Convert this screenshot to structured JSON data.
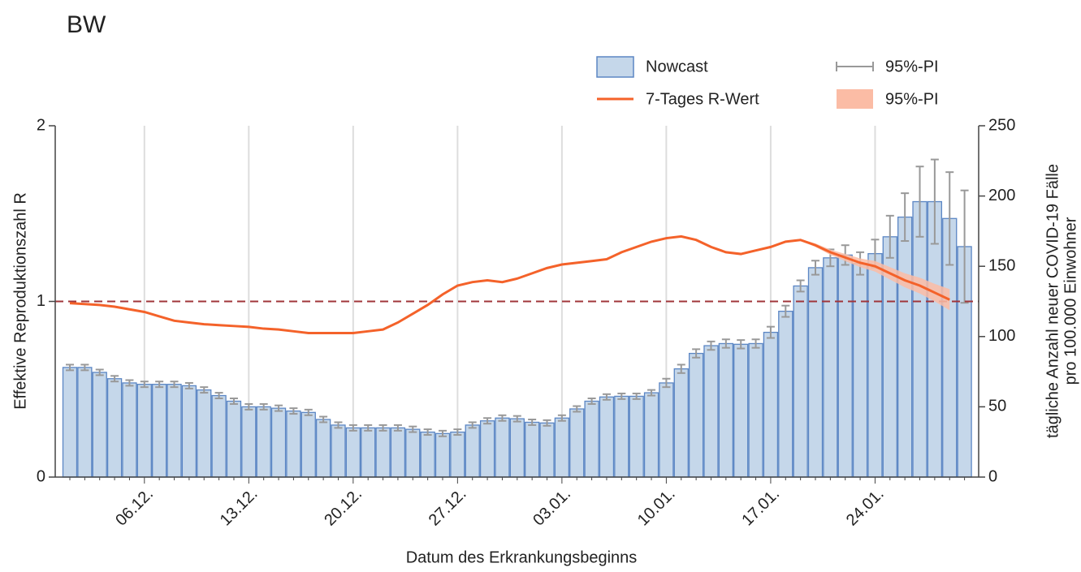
{
  "chart_data": {
    "type": "bar_line_dual",
    "title": "BW",
    "ylabel": "Effektive Reproduktionszahl R",
    "y2label": [
      "tägliche Anzahl neuer COVID-19 Fälle",
      "pro 100.000 Einwohner"
    ],
    "xlabel": "Datum des Erkrankungsbeginns",
    "categories": [
      null,
      null,
      null,
      null,
      null,
      "06.12.",
      null,
      null,
      null,
      null,
      null,
      null,
      "13.12.",
      null,
      null,
      null,
      null,
      null,
      null,
      "20.12.",
      null,
      null,
      null,
      null,
      null,
      null,
      "27.12.",
      null,
      null,
      null,
      null,
      null,
      null,
      "03.01.",
      null,
      null,
      null,
      null,
      null,
      null,
      "10.01.",
      null,
      null,
      null,
      null,
      null,
      null,
      "17.01.",
      null,
      null,
      null,
      null,
      null,
      null,
      "24.01.",
      null,
      null,
      null,
      null,
      null,
      null
    ],
    "ylim": [
      0,
      2
    ],
    "yticks": [
      0,
      1,
      2
    ],
    "y2lim": [
      0,
      250
    ],
    "y2ticks": [
      0,
      50,
      100,
      150,
      200,
      250
    ],
    "grid": "x",
    "reference_line": 1,
    "reference_color": "#a0353a",
    "series": [
      {
        "name": "Nowcast",
        "axis": "y2",
        "color": "#c5d7ea",
        "edge_color": "#5b86c4",
        "values": [
          78,
          78,
          74.5,
          70,
          67,
          66,
          66,
          66,
          65,
          62,
          58,
          54,
          50,
          50,
          49,
          47,
          46,
          41,
          37,
          35,
          35,
          35,
          35,
          34,
          32,
          31,
          32,
          37,
          40,
          42,
          41.5,
          39,
          38.5,
          42,
          48.5,
          54,
          57,
          57.5,
          57.5,
          60,
          67,
          77,
          88,
          93.5,
          95,
          94.5,
          95,
          103,
          118,
          136,
          149,
          156,
          158,
          152,
          159,
          171,
          185,
          196,
          196,
          184,
          164
        ],
        "error_name": "95%-PI",
        "error_color": "#999999",
        "errors": [
          2,
          2,
          2,
          2,
          2,
          2,
          2,
          2,
          2,
          2,
          2,
          2,
          2,
          2,
          2,
          2,
          2,
          2,
          2,
          2,
          2,
          2,
          2,
          2,
          2,
          2,
          2,
          2,
          2,
          2,
          2,
          2,
          2,
          2,
          2,
          2,
          2,
          2,
          2,
          2,
          3,
          3,
          3,
          3,
          3,
          3,
          3,
          4,
          4,
          4,
          5,
          6,
          7,
          8,
          10,
          15,
          17,
          25,
          30,
          33,
          40
        ]
      },
      {
        "name": "7-Tages R-Wert",
        "axis": "y",
        "color": "#f4622a",
        "values": [
          0.99,
          0.985,
          0.98,
          0.97,
          0.955,
          0.94,
          0.915,
          0.89,
          0.88,
          0.87,
          0.865,
          0.86,
          0.855,
          0.845,
          0.84,
          0.83,
          0.82,
          0.82,
          0.82,
          0.82,
          0.83,
          0.84,
          0.88,
          0.93,
          0.98,
          1.04,
          1.09,
          1.11,
          1.12,
          1.11,
          1.13,
          1.16,
          1.19,
          1.21,
          1.22,
          1.23,
          1.24,
          1.28,
          1.31,
          1.34,
          1.36,
          1.37,
          1.35,
          1.31,
          1.28,
          1.27,
          1.29,
          1.31,
          1.34,
          1.35,
          1.32,
          1.28,
          1.25,
          1.22,
          1.2,
          1.16,
          1.12,
          1.09,
          1.05,
          1.01,
          null
        ],
        "band_name": "95%-PI",
        "band_color": "#fbbca5",
        "lower": [
          null,
          null,
          null,
          null,
          null,
          null,
          null,
          null,
          null,
          null,
          null,
          null,
          null,
          null,
          null,
          null,
          null,
          null,
          null,
          null,
          null,
          null,
          null,
          null,
          null,
          null,
          null,
          null,
          null,
          null,
          null,
          null,
          null,
          null,
          null,
          null,
          null,
          null,
          null,
          null,
          null,
          null,
          null,
          null,
          null,
          null,
          null,
          null,
          null,
          1.345,
          1.31,
          1.265,
          1.23,
          1.195,
          1.17,
          1.125,
          1.08,
          1.045,
          1.0,
          0.95,
          null
        ],
        "upper": [
          null,
          null,
          null,
          null,
          null,
          null,
          null,
          null,
          null,
          null,
          null,
          null,
          null,
          null,
          null,
          null,
          null,
          null,
          null,
          null,
          null,
          null,
          null,
          null,
          null,
          null,
          null,
          null,
          null,
          null,
          null,
          null,
          null,
          null,
          null,
          null,
          null,
          null,
          null,
          null,
          null,
          null,
          null,
          null,
          null,
          null,
          null,
          null,
          null,
          1.355,
          1.33,
          1.295,
          1.27,
          1.245,
          1.23,
          1.195,
          1.16,
          1.135,
          1.1,
          1.07,
          null
        ]
      }
    ]
  }
}
